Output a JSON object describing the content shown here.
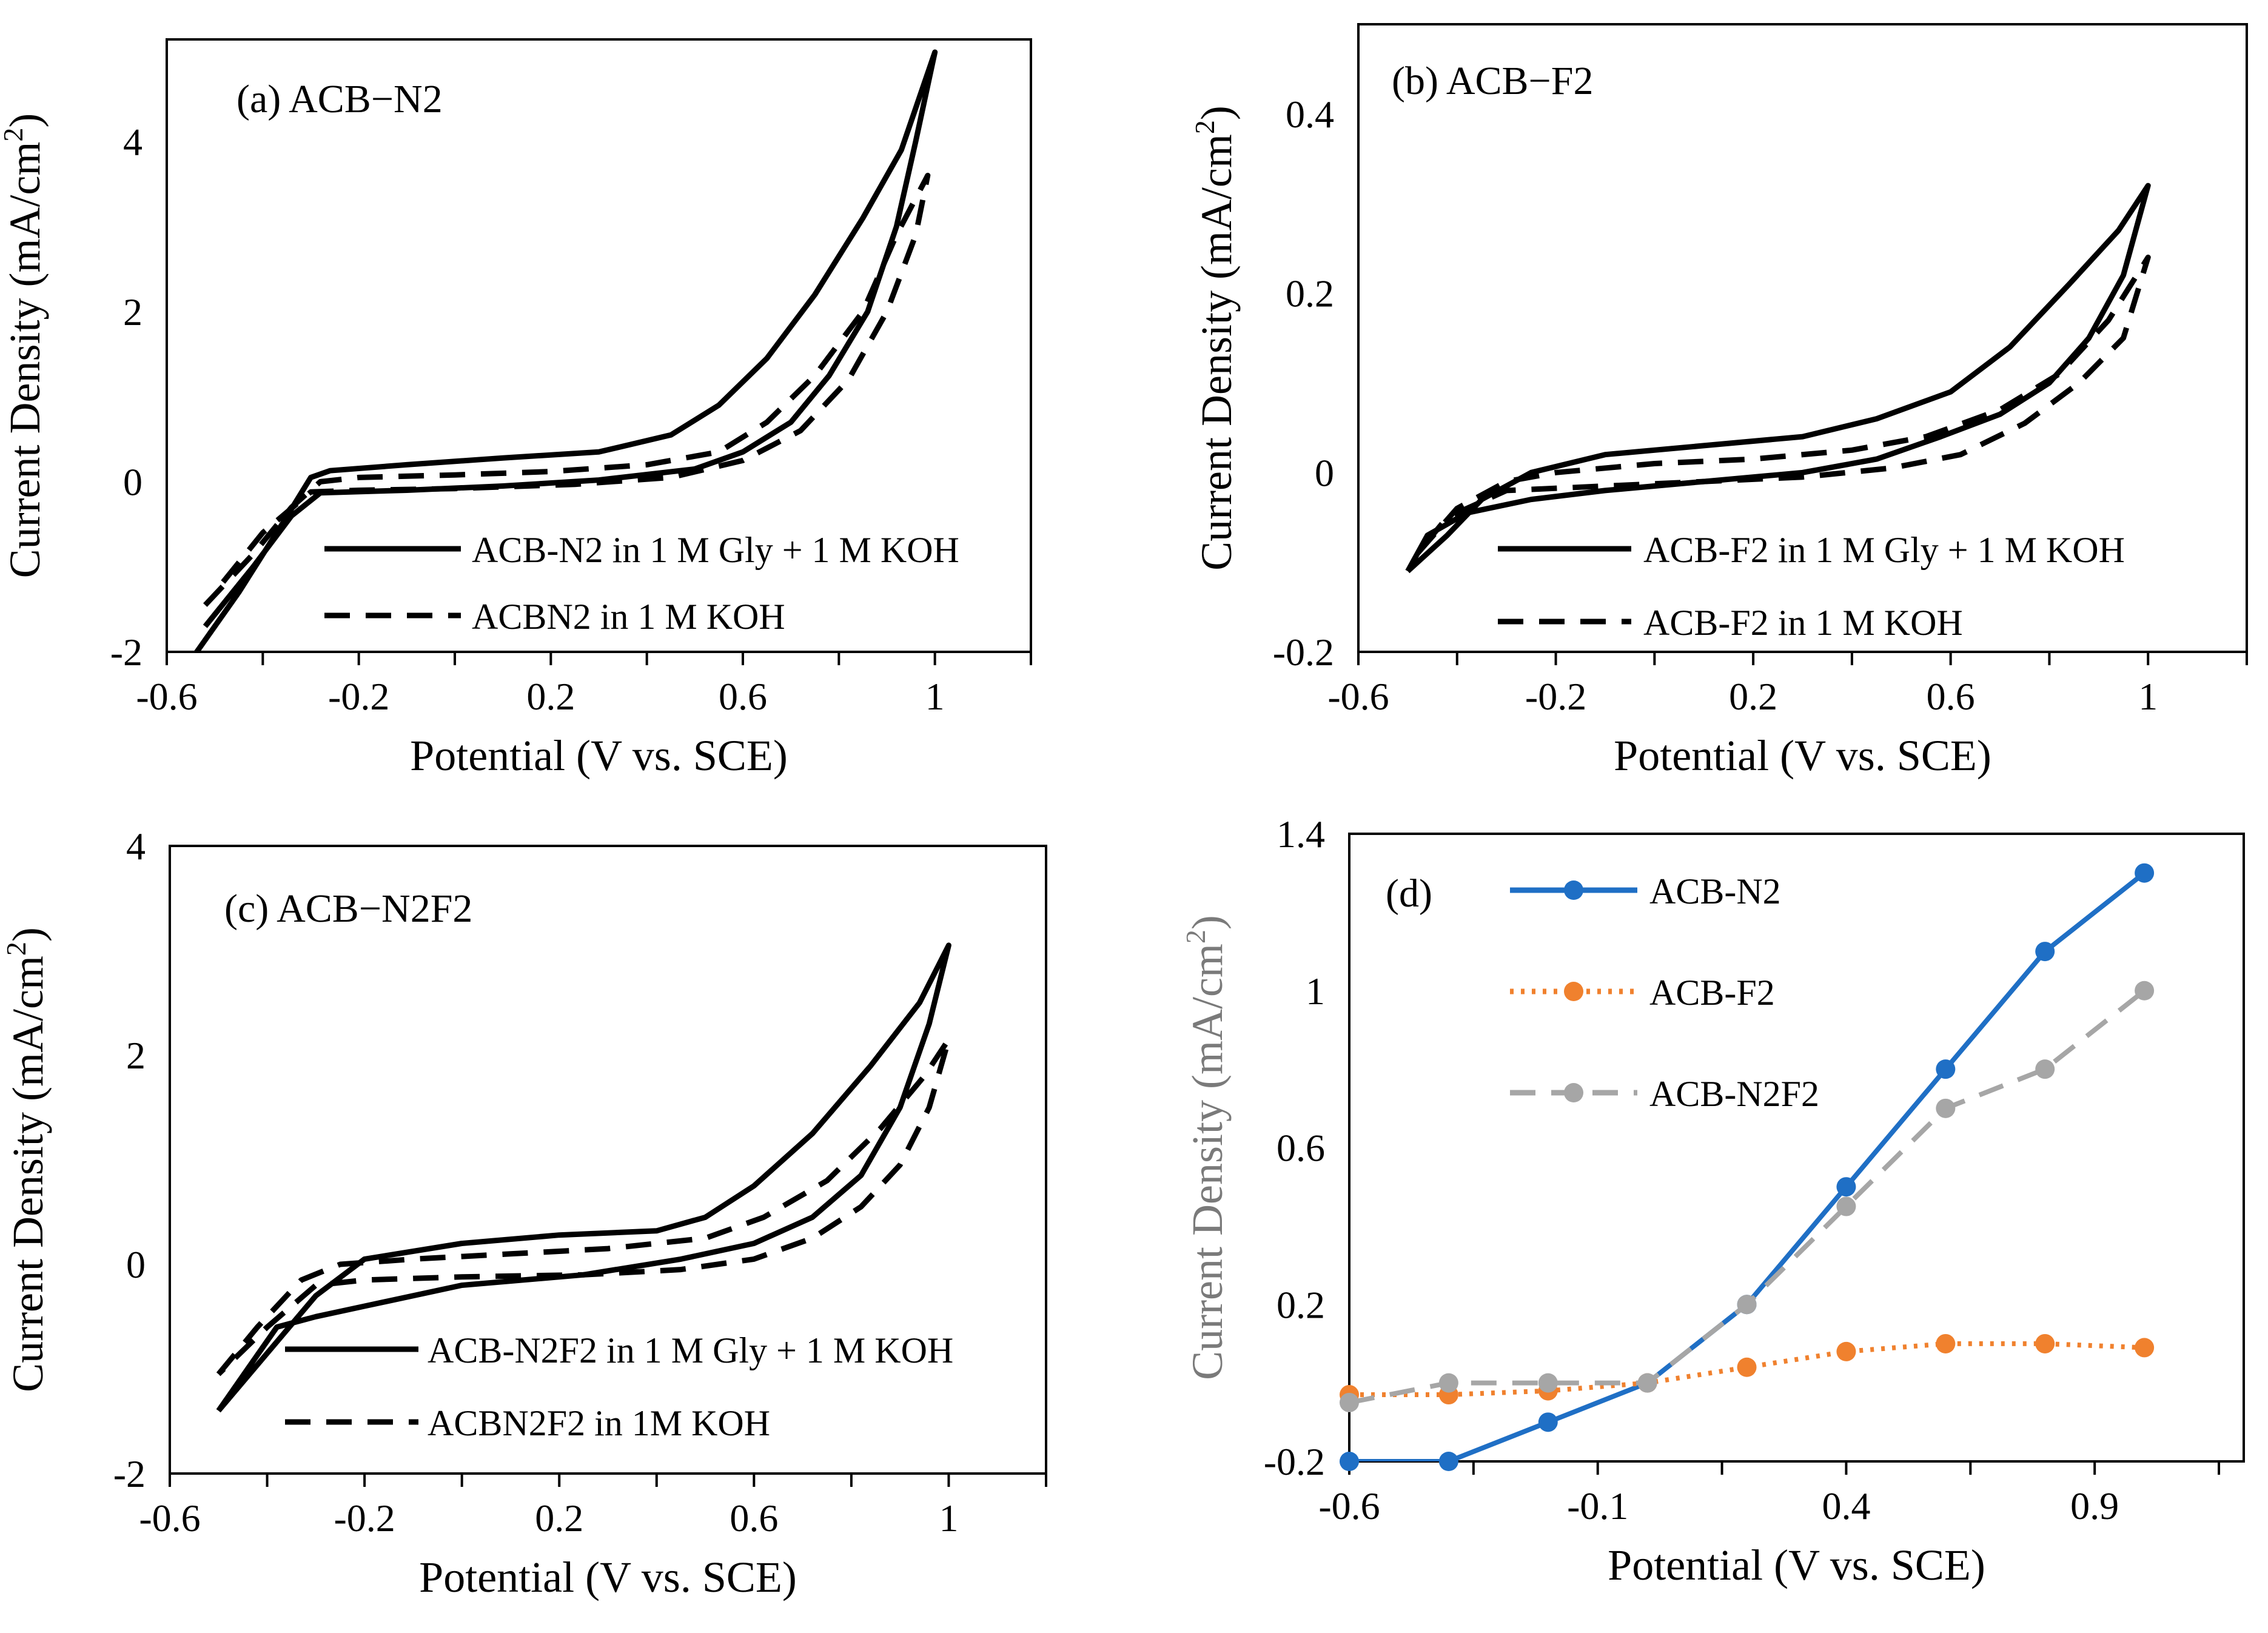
{
  "chart_data": [
    {
      "panel": "a",
      "type": "line",
      "title": "(a) ACB−N2",
      "xlabel": "Potential (V vs. SCE)",
      "ylabel_main": "Current Density (mA/cm",
      "ylabel_sup": "2",
      "ylabel_close": ")",
      "xlim": [
        -0.6,
        1.2
      ],
      "ylim": [
        -2,
        5.2
      ],
      "xticks": [
        -0.6,
        -0.2,
        0.2,
        0.6,
        1
      ],
      "xtick_labels": [
        "-0.6",
        "-0.2",
        "0.2",
        "0.6",
        "1"
      ],
      "yticks": [
        -2,
        0,
        2,
        4
      ],
      "ytick_labels": [
        "-2",
        "0",
        "2",
        "4"
      ],
      "grid": false,
      "legend": "bottom-right",
      "series": [
        {
          "name": "ACB-N2 in 1 M Gly + 1 M KOH",
          "style": "solid",
          "x": [
            -0.55,
            -0.45,
            -0.36,
            -0.3,
            -0.26,
            -0.1,
            0.1,
            0.3,
            0.45,
            0.55,
            0.65,
            0.75,
            0.85,
            0.93,
            1.0,
            0.96,
            0.92,
            0.86,
            0.78,
            0.7,
            0.6,
            0.5,
            0.3,
            0.1,
            -0.1,
            -0.28,
            -0.34,
            -0.42,
            -0.52
          ],
          "y": [
            -2.1,
            -1.3,
            -0.5,
            0.05,
            0.13,
            0.2,
            0.28,
            0.35,
            0.55,
            0.9,
            1.45,
            2.2,
            3.1,
            3.9,
            5.05,
            4.0,
            3.0,
            2.0,
            1.25,
            0.7,
            0.35,
            0.15,
            0.02,
            -0.05,
            -0.1,
            -0.13,
            -0.4,
            -1.0,
            -1.7
          ]
        },
        {
          "name": "ACBN2 in 1 M KOH",
          "style": "dashed",
          "x": [
            -0.52,
            -0.42,
            -0.34,
            -0.28,
            -0.2,
            0.0,
            0.2,
            0.4,
            0.55,
            0.65,
            0.75,
            0.85,
            0.92,
            0.985,
            0.96,
            0.9,
            0.82,
            0.72,
            0.6,
            0.45,
            0.25,
            0.0,
            -0.2,
            -0.3,
            -0.4,
            -0.5
          ],
          "y": [
            -1.45,
            -0.85,
            -0.3,
            0.0,
            0.05,
            0.08,
            0.12,
            0.2,
            0.35,
            0.7,
            1.25,
            2.0,
            2.9,
            3.6,
            2.9,
            2.0,
            1.2,
            0.6,
            0.25,
            0.05,
            -0.03,
            -0.08,
            -0.1,
            -0.12,
            -0.6,
            -1.3
          ]
        }
      ]
    },
    {
      "panel": "b",
      "type": "line",
      "title": "(b) ACB−F2",
      "xlabel": "Potential (V vs. SCE)",
      "ylabel_main": "Current Density (mA/cm",
      "ylabel_sup": "2",
      "ylabel_close": ")",
      "xlim": [
        -0.6,
        1.2
      ],
      "ylim": [
        -0.2,
        0.5
      ],
      "xticks": [
        -0.6,
        -0.2,
        0.2,
        0.6,
        1
      ],
      "xtick_labels": [
        "-0.6",
        "-0.2",
        "0.2",
        "0.6",
        "1"
      ],
      "yticks": [
        -0.2,
        0,
        0.2,
        0.4
      ],
      "ytick_labels": [
        "-0.2",
        "0",
        "0.2",
        "0.4"
      ],
      "grid": false,
      "legend": "bottom-right",
      "series": [
        {
          "name": "ACB-F2 in 1 M Gly + 1 M KOH",
          "style": "solid",
          "x": [
            -0.5,
            -0.42,
            -0.35,
            -0.25,
            -0.1,
            0.1,
            0.3,
            0.45,
            0.6,
            0.72,
            0.84,
            0.94,
            1.0,
            0.95,
            0.88,
            0.8,
            0.7,
            0.58,
            0.45,
            0.3,
            0.1,
            -0.1,
            -0.25,
            -0.38,
            -0.46,
            -0.5
          ],
          "y": [
            -0.11,
            -0.07,
            -0.03,
            0.0,
            0.02,
            0.03,
            0.04,
            0.06,
            0.09,
            0.14,
            0.21,
            0.27,
            0.32,
            0.22,
            0.15,
            0.1,
            0.065,
            0.04,
            0.015,
            0.0,
            -0.01,
            -0.02,
            -0.03,
            -0.045,
            -0.07,
            -0.11
          ]
        },
        {
          "name": "ACB-F2 in 1 M KOH",
          "style": "dashed",
          "x": [
            -0.48,
            -0.4,
            -0.3,
            -0.2,
            0.0,
            0.2,
            0.4,
            0.55,
            0.7,
            0.82,
            0.92,
            1.0,
            0.95,
            0.86,
            0.75,
            0.62,
            0.48,
            0.3,
            0.1,
            -0.1,
            -0.3,
            -0.42,
            -0.48
          ],
          "y": [
            -0.09,
            -0.04,
            -0.01,
            0.0,
            0.01,
            0.015,
            0.025,
            0.04,
            0.07,
            0.11,
            0.17,
            0.24,
            0.15,
            0.1,
            0.055,
            0.02,
            0.005,
            -0.005,
            -0.01,
            -0.015,
            -0.02,
            -0.05,
            -0.09
          ]
        }
      ]
    },
    {
      "panel": "c",
      "type": "line",
      "title": "(c) ACB−N2F2",
      "xlabel": "Potential (V vs. SCE)",
      "ylabel_main": "Current Density (mA/cm",
      "ylabel_sup": "2",
      "ylabel_close": ")",
      "xlim": [
        -0.6,
        1.2
      ],
      "ylim": [
        -2,
        4
      ],
      "xticks": [
        -0.6,
        -0.2,
        0.2,
        0.6,
        1
      ],
      "xtick_labels": [
        "-0.6",
        "-0.2",
        "0.2",
        "0.6",
        "1"
      ],
      "yticks": [
        -2,
        0,
        2,
        4
      ],
      "ytick_labels": [
        "-2",
        "0",
        "2",
        "4"
      ],
      "grid": false,
      "legend": "bottom-right",
      "series": [
        {
          "name": "ACB-N2F2 in 1 M Gly + 1 M KOH",
          "style": "solid",
          "x": [
            -0.5,
            -0.4,
            -0.3,
            -0.2,
            0.0,
            0.2,
            0.4,
            0.5,
            0.6,
            0.72,
            0.84,
            0.94,
            1.0,
            0.96,
            0.9,
            0.82,
            0.72,
            0.6,
            0.45,
            0.25,
            0.0,
            -0.2,
            -0.3,
            -0.38,
            -0.44,
            -0.5
          ],
          "y": [
            -1.4,
            -0.85,
            -0.3,
            0.05,
            0.2,
            0.28,
            0.32,
            0.45,
            0.75,
            1.25,
            1.9,
            2.5,
            3.05,
            2.3,
            1.5,
            0.85,
            0.45,
            0.2,
            0.05,
            -0.1,
            -0.2,
            -0.4,
            -0.5,
            -0.6,
            -1.0,
            -1.4
          ]
        },
        {
          "name": "ACBN2F2 in 1M KOH",
          "style": "dashed",
          "x": [
            -0.5,
            -0.42,
            -0.33,
            -0.25,
            -0.1,
            0.1,
            0.3,
            0.5,
            0.62,
            0.75,
            0.86,
            0.95,
            1.0,
            0.96,
            0.9,
            0.82,
            0.72,
            0.6,
            0.45,
            0.25,
            0.0,
            -0.2,
            -0.3,
            -0.4,
            -0.5
          ],
          "y": [
            -1.05,
            -0.6,
            -0.15,
            0.0,
            0.05,
            0.1,
            0.15,
            0.25,
            0.45,
            0.8,
            1.3,
            1.8,
            2.15,
            1.5,
            0.95,
            0.55,
            0.25,
            0.05,
            -0.05,
            -0.1,
            -0.12,
            -0.15,
            -0.2,
            -0.6,
            -1.05
          ]
        }
      ]
    },
    {
      "panel": "d",
      "type": "line",
      "title": "(d)",
      "xlabel": "Potential (V vs. SCE)",
      "ylabel_main": "Current Density (mA/cm",
      "ylabel_sup": "2",
      "ylabel_close": ")",
      "xlim": [
        -0.6,
        1.2
      ],
      "ylim": [
        -0.2,
        1.4
      ],
      "xticks": [
        -0.6,
        -0.1,
        0.4,
        0.9
      ],
      "xtick_labels": [
        "-0.6",
        "-0.1",
        "0.4",
        "0.9"
      ],
      "yticks": [
        -0.2,
        0.2,
        0.6,
        1,
        1.4
      ],
      "ytick_labels": [
        "-0.2",
        "0.2",
        "0.6",
        "1",
        "1.4"
      ],
      "grid": false,
      "legend": "top-left",
      "x": [
        -0.6,
        -0.4,
        -0.2,
        0.0,
        0.2,
        0.4,
        0.6,
        0.8,
        1.0
      ],
      "series": [
        {
          "name": "ACB-N2",
          "style": "solid",
          "color": "#1F6FC5",
          "values": [
            -0.2,
            -0.2,
            -0.1,
            0.0,
            0.2,
            0.5,
            0.8,
            1.1,
            1.3
          ]
        },
        {
          "name": "ACB-F2",
          "style": "dotted",
          "color": "#F0812E",
          "values": [
            -0.03,
            -0.03,
            -0.02,
            0.0,
            0.04,
            0.08,
            0.1,
            0.1,
            0.09
          ]
        },
        {
          "name": "ACB-N2F2",
          "style": "dashed",
          "color": "#A6A6A6",
          "values": [
            -0.05,
            0.0,
            0.0,
            0.0,
            0.2,
            0.45,
            0.7,
            0.8,
            1.0
          ]
        }
      ]
    }
  ]
}
